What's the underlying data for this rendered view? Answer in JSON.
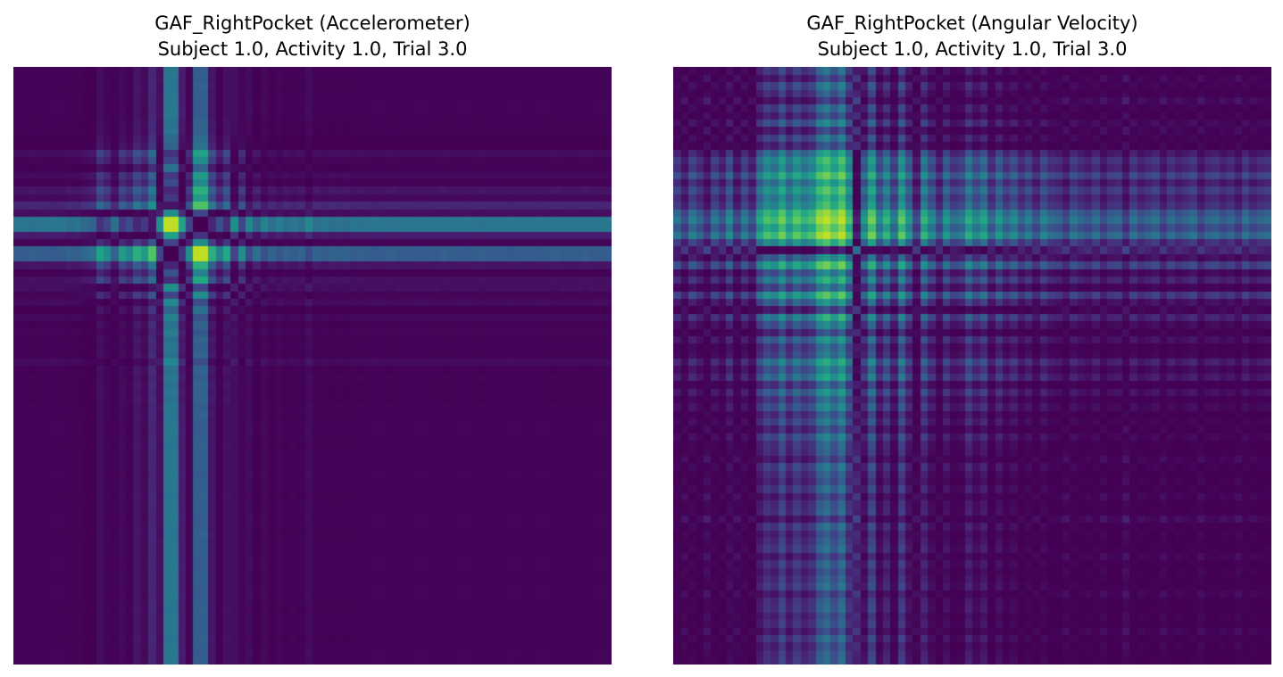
{
  "chart_data": [
    {
      "type": "heatmap",
      "title": "GAF_RightPocket (Accelerometer)",
      "subtitle": "Subject 1.0, Activity 1.0, Trial 3.0",
      "axes_visible": false,
      "colormap": "viridis",
      "value_range": [
        -1,
        1
      ],
      "profile": [
        0.1,
        0.1,
        0.08,
        0.1,
        0.1,
        0.12,
        0.1,
        0.05,
        0.08,
        0.0,
        -0.05,
        -0.45,
        -0.3,
        0.05,
        -0.4,
        -0.25,
        -0.55,
        -0.4,
        -0.7,
        0.3,
        0.95,
        0.95,
        0.45,
        -0.3,
        -0.95,
        -0.95,
        -0.55,
        -0.2,
        -0.5,
        0.3,
        -0.3,
        0.25,
        -0.05,
        0.2,
        0.05,
        0.15,
        0.05,
        0.1,
        0.05,
        0.25,
        0.05,
        0.1,
        0.05,
        0.08,
        0.05,
        0.1,
        0.08,
        0.1,
        0.12,
        0.1,
        0.08,
        0.1,
        0.1,
        0.1,
        0.12,
        0.1,
        0.1,
        0.08,
        0.1,
        0.1,
        0.12,
        0.1,
        0.08,
        0.1,
        0.1,
        0.1,
        0.12,
        0.1,
        0.1,
        0.1,
        0.12,
        0.1,
        0.08,
        0.1,
        0.1,
        0.1,
        0.08,
        0.1,
        0.12,
        0.1
      ]
    },
    {
      "type": "heatmap",
      "title": "GAF_RightPocket (Angular Velocity)",
      "subtitle": "Subject 1.0, Activity 1.0, Trial 3.0",
      "axes_visible": false,
      "colormap": "viridis",
      "value_range": [
        -1,
        1
      ],
      "profile": [
        0.1,
        -0.2,
        0.2,
        0.0,
        -0.3,
        0.15,
        -0.1,
        0.3,
        -0.2,
        0.2,
        -0.1,
        0.5,
        0.7,
        0.6,
        0.8,
        0.55,
        0.75,
        0.6,
        0.7,
        0.9,
        0.95,
        0.85,
        0.95,
        0.7,
        -0.6,
        0.4,
        0.8,
        0.3,
        0.6,
        0.2,
        0.75,
        0.4,
        -0.2,
        0.6,
        0.3,
        -0.1,
        0.4,
        0.1,
        0.2,
        0.55,
        0.3,
        0.5,
        0.05,
        0.4,
        0.1,
        0.3,
        0.0,
        0.2,
        -0.1,
        0.25,
        0.05,
        0.0,
        -0.2,
        0.15,
        0.0,
        -0.1,
        0.1,
        -0.2,
        0.0,
        0.05,
        -0.3,
        0.1,
        -0.1,
        0.0,
        0.1,
        -0.2,
        0.05,
        -0.1,
        0.0,
        0.1,
        -0.2,
        0.0,
        0.05,
        -0.1,
        0.0,
        -0.2,
        0.1,
        -0.1,
        0.0,
        0.05
      ]
    }
  ]
}
